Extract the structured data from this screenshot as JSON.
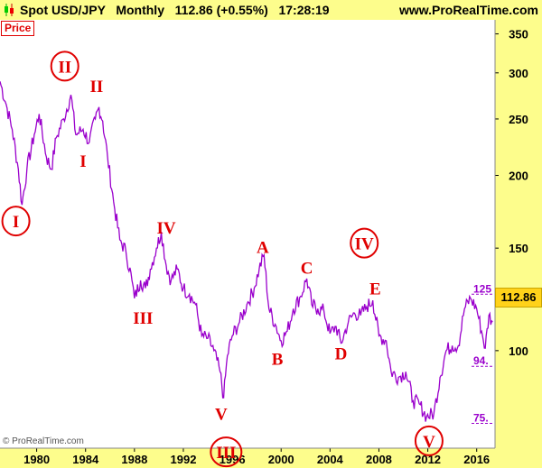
{
  "header": {
    "instrument": "Spot USD/JPY",
    "timeframe": "Monthly",
    "last_price": "112.86",
    "change": "(+0.55%)",
    "time": "17:28:19",
    "site": "www.ProRealTime.com"
  },
  "panel_label": "Price",
  "copyright": "© ProRealTime.com",
  "last_price_badge": "112.86",
  "colors": {
    "series": "#9a00cc",
    "labels": "#e00000",
    "panel": "#fdfd8c",
    "badge": "#ffd21a"
  },
  "chart_data": {
    "type": "line",
    "yscale": "log",
    "ylim": [
      68,
      370
    ],
    "xlim": [
      1977.0,
      2017.5
    ],
    "x_ticks": [
      "1980",
      "1984",
      "1988",
      "1992",
      "1996",
      "2000",
      "2004",
      "2008",
      "2012",
      "2016"
    ],
    "y_ticks": [
      "100",
      "150",
      "200",
      "250",
      "300",
      "350"
    ],
    "reference_levels": [
      {
        "label": "125",
        "value": 125
      },
      {
        "label": "94.",
        "value": 94
      },
      {
        "label": "75.",
        "value": 75
      }
    ],
    "series": [
      {
        "points": [
          [
            1977.0,
            290
          ],
          [
            1977.5,
            265
          ],
          [
            1978.0,
            240
          ],
          [
            1978.5,
            205
          ],
          [
            1978.8,
            178
          ],
          [
            1979.2,
            205
          ],
          [
            1979.8,
            235
          ],
          [
            1980.2,
            255
          ],
          [
            1980.8,
            215
          ],
          [
            1981.2,
            205
          ],
          [
            1981.6,
            232
          ],
          [
            1982.2,
            250
          ],
          [
            1982.8,
            275
          ],
          [
            1983.2,
            235
          ],
          [
            1983.8,
            240
          ],
          [
            1984.3,
            228
          ],
          [
            1984.8,
            250
          ],
          [
            1985.1,
            262
          ],
          [
            1985.4,
            248
          ],
          [
            1985.8,
            215
          ],
          [
            1986.3,
            180
          ],
          [
            1986.8,
            155
          ],
          [
            1987.3,
            148
          ],
          [
            1987.8,
            132
          ],
          [
            1988.0,
            123
          ],
          [
            1988.5,
            132
          ],
          [
            1988.9,
            128
          ],
          [
            1989.3,
            138
          ],
          [
            1989.8,
            150
          ],
          [
            1990.2,
            160
          ],
          [
            1990.6,
            140
          ],
          [
            1991.0,
            132
          ],
          [
            1991.5,
            138
          ],
          [
            1992.0,
            128
          ],
          [
            1992.5,
            125
          ],
          [
            1993.0,
            120
          ],
          [
            1993.5,
            106
          ],
          [
            1994.0,
            105
          ],
          [
            1994.5,
            100
          ],
          [
            1995.0,
            92
          ],
          [
            1995.3,
            83
          ],
          [
            1995.6,
            98
          ],
          [
            1996.0,
            106
          ],
          [
            1996.6,
            112
          ],
          [
            1997.2,
            120
          ],
          [
            1997.8,
            128
          ],
          [
            1998.2,
            138
          ],
          [
            1998.6,
            146
          ],
          [
            1999.0,
            118
          ],
          [
            1999.6,
            110
          ],
          [
            2000.0,
            104
          ],
          [
            2000.5,
            108
          ],
          [
            2001.0,
            118
          ],
          [
            2001.6,
            124
          ],
          [
            2002.1,
            133
          ],
          [
            2002.5,
            120
          ],
          [
            2003.0,
            118
          ],
          [
            2003.5,
            117
          ],
          [
            2004.0,
            107
          ],
          [
            2004.5,
            110
          ],
          [
            2004.9,
            103
          ],
          [
            2005.5,
            112
          ],
          [
            2006.0,
            116
          ],
          [
            2006.5,
            115
          ],
          [
            2007.0,
            119
          ],
          [
            2007.5,
            122
          ],
          [
            2008.0,
            106
          ],
          [
            2008.6,
            104
          ],
          [
            2009.0,
            92
          ],
          [
            2009.6,
            90
          ],
          [
            2010.2,
            92
          ],
          [
            2010.8,
            82
          ],
          [
            2011.3,
            81
          ],
          [
            2011.9,
            77
          ],
          [
            2012.5,
            78
          ],
          [
            2013.0,
            90
          ],
          [
            2013.5,
            100
          ],
          [
            2014.0,
            102
          ],
          [
            2014.5,
            102
          ],
          [
            2015.0,
            118
          ],
          [
            2015.5,
            123
          ],
          [
            2016.0,
            118
          ],
          [
            2016.4,
            108
          ],
          [
            2016.7,
            101
          ],
          [
            2017.0,
            115
          ],
          [
            2017.3,
            112
          ]
        ]
      }
    ],
    "annotations": [
      {
        "text": "I",
        "x": 1978.3,
        "y": 167,
        "circled": true
      },
      {
        "text": "II",
        "x": 1982.3,
        "y": 308,
        "circled": true
      },
      {
        "text": "II",
        "x": 1984.9,
        "y": 285,
        "circled": false
      },
      {
        "text": "I",
        "x": 1983.8,
        "y": 212,
        "circled": false
      },
      {
        "text": "III",
        "x": 1988.7,
        "y": 114,
        "circled": false
      },
      {
        "text": "IV",
        "x": 1990.6,
        "y": 163,
        "circled": false
      },
      {
        "text": "V",
        "x": 1995.1,
        "y": 78,
        "circled": false
      },
      {
        "text": "III",
        "x": 1995.5,
        "y": 67,
        "circled": true
      },
      {
        "text": "A",
        "x": 1998.5,
        "y": 151,
        "circled": false
      },
      {
        "text": "B",
        "x": 1999.7,
        "y": 97,
        "circled": false
      },
      {
        "text": "C",
        "x": 2002.1,
        "y": 139,
        "circled": false
      },
      {
        "text": "D",
        "x": 2004.9,
        "y": 99,
        "circled": false
      },
      {
        "text": "IV",
        "x": 2006.8,
        "y": 153,
        "circled": true
      },
      {
        "text": "E",
        "x": 2007.7,
        "y": 128,
        "circled": false
      },
      {
        "text": "V",
        "x": 2012.1,
        "y": 70,
        "circled": true
      }
    ]
  }
}
